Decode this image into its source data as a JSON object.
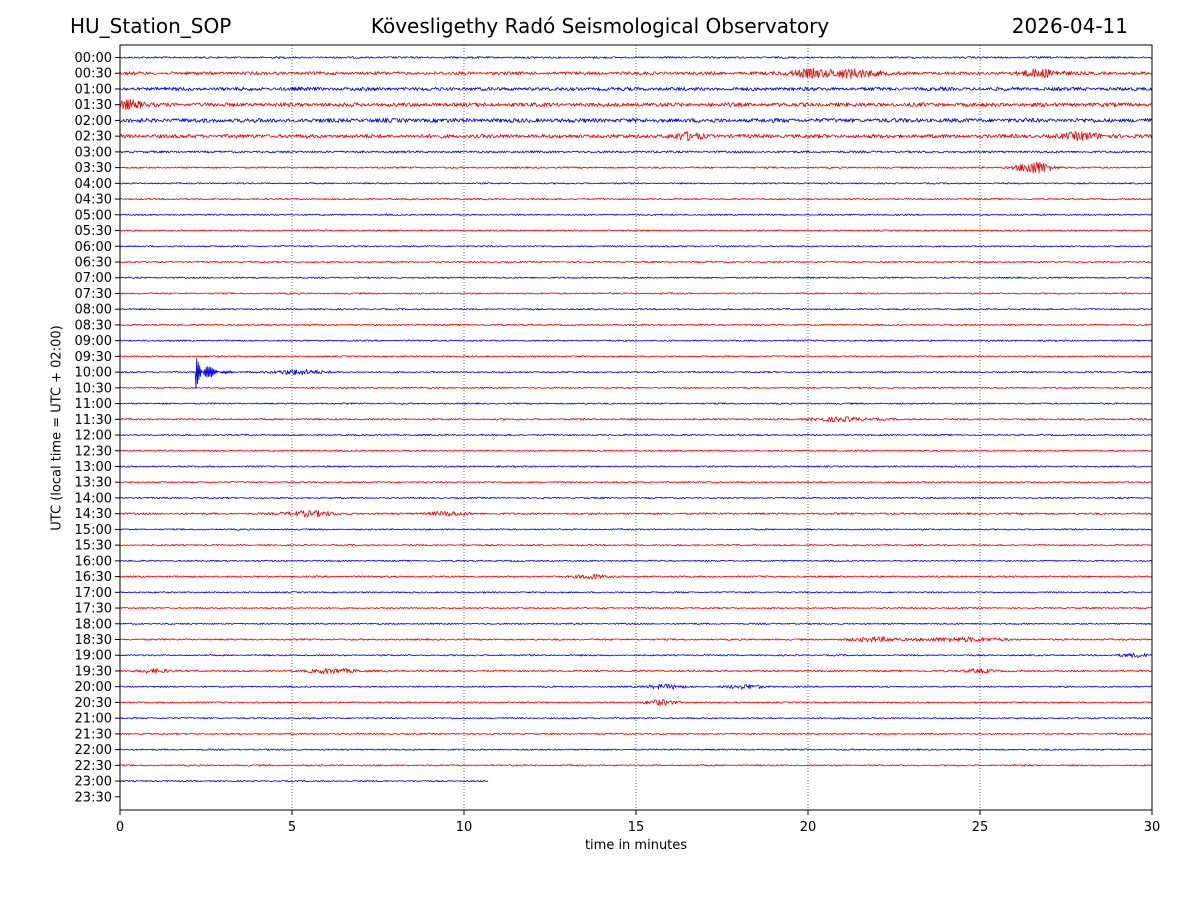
{
  "header": {
    "station": "HU_Station_SOP",
    "observatory": "Kövesligethy Radó Seismological Observatory",
    "date": "2026-04-11"
  },
  "chart_data": {
    "type": "line",
    "title": "Kövesligethy Radó Seismological Observatory",
    "xlabel": "time in minutes",
    "ylabel": "UTC (local time = UTC + 02:00)",
    "xlim": [
      0,
      30
    ],
    "xticks": [
      0,
      5,
      10,
      15,
      20,
      25,
      30
    ],
    "grid": "vertical dotted lines at each x tick",
    "colors": {
      "even_rows": "#0000ee",
      "odd_rows": "#ee0000"
    },
    "rows": [
      {
        "label": "00:00",
        "color": "blue",
        "noise": 0.9,
        "x_end": 30
      },
      {
        "label": "00:30",
        "color": "red",
        "noise": 1.5,
        "x_end": 30,
        "events": [
          {
            "x": 20.0,
            "amp": 3.5,
            "width": 0.4
          },
          {
            "x": 21.3,
            "amp": 4.0,
            "width": 0.5
          },
          {
            "x": 26.8,
            "amp": 3.5,
            "width": 0.4
          }
        ]
      },
      {
        "label": "01:00",
        "color": "blue",
        "noise": 1.7,
        "x_end": 30
      },
      {
        "label": "01:30",
        "color": "red",
        "noise": 1.9,
        "x_end": 30,
        "events": [
          {
            "x": 0.2,
            "amp": 4.0,
            "width": 0.3
          }
        ]
      },
      {
        "label": "02:00",
        "color": "blue",
        "noise": 2.0,
        "x_end": 30
      },
      {
        "label": "02:30",
        "color": "red",
        "noise": 1.8,
        "x_end": 30,
        "events": [
          {
            "x": 16.5,
            "amp": 3.0,
            "width": 0.3
          },
          {
            "x": 28.0,
            "amp": 3.0,
            "width": 0.4
          }
        ]
      },
      {
        "label": "03:00",
        "color": "blue",
        "noise": 1.0,
        "x_end": 30
      },
      {
        "label": "03:30",
        "color": "red",
        "noise": 0.8,
        "x_end": 30,
        "events": [
          {
            "x": 26.6,
            "amp": 6.0,
            "width": 0.35
          }
        ]
      },
      {
        "label": "04:00",
        "color": "blue",
        "noise": 0.7,
        "x_end": 30
      },
      {
        "label": "04:30",
        "color": "red",
        "noise": 0.7,
        "x_end": 30
      },
      {
        "label": "05:00",
        "color": "blue",
        "noise": 0.7,
        "x_end": 30
      },
      {
        "label": "05:30",
        "color": "red",
        "noise": 0.7,
        "x_end": 30
      },
      {
        "label": "06:00",
        "color": "blue",
        "noise": 0.7,
        "x_end": 30
      },
      {
        "label": "06:30",
        "color": "red",
        "noise": 0.7,
        "x_end": 30
      },
      {
        "label": "07:00",
        "color": "blue",
        "noise": 0.7,
        "x_end": 30
      },
      {
        "label": "07:30",
        "color": "red",
        "noise": 0.7,
        "x_end": 30
      },
      {
        "label": "08:00",
        "color": "blue",
        "noise": 0.7,
        "x_end": 30
      },
      {
        "label": "08:30",
        "color": "red",
        "noise": 0.7,
        "x_end": 30
      },
      {
        "label": "09:00",
        "color": "blue",
        "noise": 0.7,
        "x_end": 30
      },
      {
        "label": "09:30",
        "color": "red",
        "noise": 0.7,
        "x_end": 30
      },
      {
        "label": "10:00",
        "color": "blue",
        "noise": 0.7,
        "x_end": 30,
        "events": [
          {
            "x": 2.2,
            "amp": 18.0,
            "width": 0.9,
            "spike": true
          },
          {
            "x": 5.2,
            "amp": 2.5,
            "width": 0.5
          }
        ]
      },
      {
        "label": "10:30",
        "color": "red",
        "noise": 0.7,
        "x_end": 30
      },
      {
        "label": "11:00",
        "color": "blue",
        "noise": 0.7,
        "x_end": 30
      },
      {
        "label": "11:30",
        "color": "red",
        "noise": 0.8,
        "x_end": 30,
        "events": [
          {
            "x": 21.0,
            "amp": 2.0,
            "width": 0.6
          }
        ]
      },
      {
        "label": "12:00",
        "color": "blue",
        "noise": 0.7,
        "x_end": 30
      },
      {
        "label": "12:30",
        "color": "red",
        "noise": 0.7,
        "x_end": 30
      },
      {
        "label": "13:00",
        "color": "blue",
        "noise": 0.7,
        "x_end": 30
      },
      {
        "label": "13:30",
        "color": "red",
        "noise": 0.7,
        "x_end": 30
      },
      {
        "label": "14:00",
        "color": "blue",
        "noise": 0.7,
        "x_end": 30
      },
      {
        "label": "14:30",
        "color": "red",
        "noise": 0.9,
        "x_end": 30,
        "events": [
          {
            "x": 5.5,
            "amp": 2.5,
            "width": 0.5
          },
          {
            "x": 9.5,
            "amp": 1.8,
            "width": 0.4
          }
        ]
      },
      {
        "label": "15:00",
        "color": "blue",
        "noise": 0.7,
        "x_end": 30
      },
      {
        "label": "15:30",
        "color": "red",
        "noise": 0.7,
        "x_end": 30
      },
      {
        "label": "16:00",
        "color": "blue",
        "noise": 0.7,
        "x_end": 30
      },
      {
        "label": "16:30",
        "color": "red",
        "noise": 0.8,
        "x_end": 30,
        "events": [
          {
            "x": 13.7,
            "amp": 2.2,
            "width": 0.3
          }
        ]
      },
      {
        "label": "17:00",
        "color": "blue",
        "noise": 0.7,
        "x_end": 30
      },
      {
        "label": "17:30",
        "color": "red",
        "noise": 0.7,
        "x_end": 30
      },
      {
        "label": "18:00",
        "color": "blue",
        "noise": 0.7,
        "x_end": 30
      },
      {
        "label": "18:30",
        "color": "red",
        "noise": 0.8,
        "x_end": 30,
        "events": [
          {
            "x": 22.0,
            "amp": 2.0,
            "width": 0.5
          },
          {
            "x": 24.5,
            "amp": 2.0,
            "width": 0.8
          }
        ]
      },
      {
        "label": "19:00",
        "color": "blue",
        "noise": 0.7,
        "x_end": 30,
        "events": [
          {
            "x": 29.5,
            "amp": 2.0,
            "width": 0.3
          }
        ]
      },
      {
        "label": "19:30",
        "color": "red",
        "noise": 0.8,
        "x_end": 30,
        "events": [
          {
            "x": 1.0,
            "amp": 2.0,
            "width": 0.3
          },
          {
            "x": 6.2,
            "amp": 2.2,
            "width": 0.5
          },
          {
            "x": 25.0,
            "amp": 1.8,
            "width": 0.3
          }
        ]
      },
      {
        "label": "20:00",
        "color": "blue",
        "noise": 0.7,
        "x_end": 30,
        "events": [
          {
            "x": 15.8,
            "amp": 2.0,
            "width": 0.4
          },
          {
            "x": 18.2,
            "amp": 2.0,
            "width": 0.4
          }
        ]
      },
      {
        "label": "20:30",
        "color": "red",
        "noise": 0.7,
        "x_end": 30,
        "events": [
          {
            "x": 15.7,
            "amp": 2.5,
            "width": 0.3
          }
        ]
      },
      {
        "label": "21:00",
        "color": "blue",
        "noise": 0.7,
        "x_end": 30
      },
      {
        "label": "21:30",
        "color": "red",
        "noise": 0.7,
        "x_end": 30
      },
      {
        "label": "22:00",
        "color": "blue",
        "noise": 0.7,
        "x_end": 30
      },
      {
        "label": "22:30",
        "color": "red",
        "noise": 0.7,
        "x_end": 30
      },
      {
        "label": "23:00",
        "color": "blue",
        "noise": 0.7,
        "x_end": 10.7
      },
      {
        "label": "23:30",
        "color": "red",
        "noise": 0,
        "x_end": 0
      }
    ]
  }
}
